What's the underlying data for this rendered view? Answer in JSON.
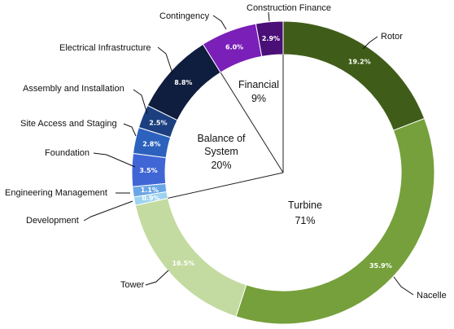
{
  "chart_data": {
    "type": "pie",
    "variant": "donut",
    "rings": [
      {
        "name": "components",
        "slices": [
          {
            "label": "Rotor",
            "value": 19.2,
            "value_label": "19.2%",
            "color": "#3f5d18"
          },
          {
            "label": "Nacelle",
            "value": 35.9,
            "value_label": "35.9%",
            "color": "#76a03b"
          },
          {
            "label": "Tower",
            "value": 16.5,
            "value_label": "16.5%",
            "color": "#c3dba0"
          },
          {
            "label": "Development",
            "value": 0.9,
            "value_label": "0.9%",
            "color": "#9dd3f0"
          },
          {
            "label": "Engineering Management",
            "value": 1.1,
            "value_label": "1.1%",
            "color": "#6aa6e6"
          },
          {
            "label": "Foundation",
            "value": 3.5,
            "value_label": "3.5%",
            "color": "#4066d6"
          },
          {
            "label": "Site Access and Staging",
            "value": 2.8,
            "value_label": "2.8%",
            "color": "#2c62bd"
          },
          {
            "label": "Assembly and Installation",
            "value": 2.5,
            "value_label": "2.5%",
            "color": "#1c3f80"
          },
          {
            "label": "Electrical Infrastructure",
            "value": 8.8,
            "value_label": "8.8%",
            "color": "#0f1d3e"
          },
          {
            "label": "Contingency",
            "value": 6.0,
            "value_label": "6.0%",
            "color": "#7a1fb8"
          },
          {
            "label": "Construction Finance",
            "value": 2.9,
            "value_label": "2.9%",
            "color": "#4b0f78"
          }
        ]
      }
    ],
    "groups": [
      {
        "label": "Turbine",
        "value_label": "71%"
      },
      {
        "label": "Balance of System",
        "value_label": "20%"
      },
      {
        "label": "Financial",
        "value_label": "9%"
      }
    ]
  }
}
